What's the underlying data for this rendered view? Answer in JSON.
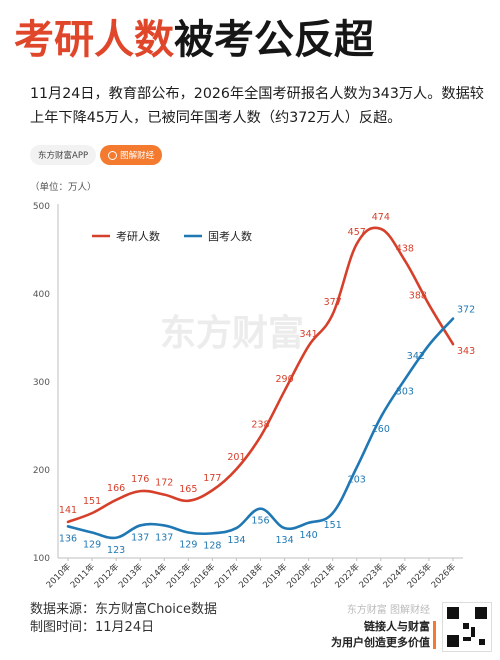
{
  "headline": {
    "part1": "考研人数",
    "part2": "被考公反超"
  },
  "intro": "11月24日，教育部公布，2026年全国考研报名人数为343万人。数据较上年下降45万人，已被同年国考人数（约372万人）反超。",
  "brand": {
    "app": "东方财富APP",
    "button": "图解财经"
  },
  "watermark": "东方财富",
  "footer": {
    "source": "数据来源：东方财富Choice数据",
    "date": "制图时间：11月24日",
    "brandline": "东方财富 图解财经",
    "slogan1": "链接人与财富",
    "slogan2": "为用户创造更多价值"
  },
  "colors": {
    "red": "#d6402b",
    "blue": "#1f78b4",
    "accent": "#f37a2f"
  },
  "chart_data": {
    "type": "line",
    "unit_label": "（单位：万人）",
    "ylim": [
      100,
      500
    ],
    "yticks": [
      100,
      200,
      300,
      400,
      500
    ],
    "grid": false,
    "legend_position": "top-left",
    "categories": [
      "2010年",
      "2011年",
      "2012年",
      "2013年",
      "2014年",
      "2015年",
      "2016年",
      "2017年",
      "2018年",
      "2019年",
      "2020年",
      "2021年",
      "2022年",
      "2023年",
      "2024年",
      "2025年",
      "2026年"
    ],
    "series": [
      {
        "name": "考研人数",
        "color": "#d6402b",
        "values": [
          141,
          151,
          166,
          176,
          172,
          165,
          177,
          201,
          238,
          290,
          341,
          377,
          457,
          474,
          438,
          388,
          343
        ]
      },
      {
        "name": "国考人数",
        "color": "#1f78b4",
        "values": [
          136,
          129,
          123,
          137,
          137,
          129,
          128,
          134,
          156,
          134,
          140,
          151,
          203,
          260,
          303,
          342,
          372
        ]
      }
    ]
  }
}
